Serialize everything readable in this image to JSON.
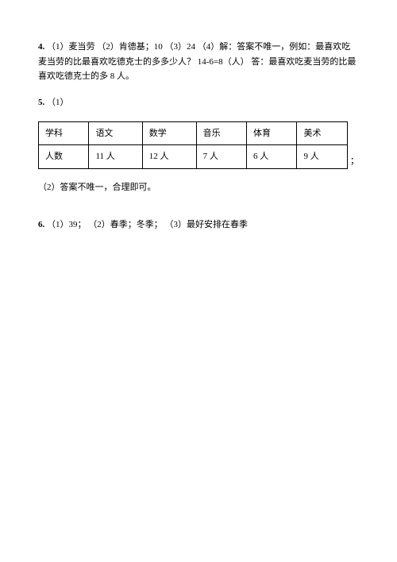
{
  "q4": {
    "number": "4.",
    "text": "（1）麦当劳 （2）肯德基；10 （3）24 （4）解：答案不唯一，例如：最喜欢吃麦当劳的比最喜欢吃德克士的多多少人？ 14-6=8（人）  答：最喜欢吃麦当劳的比最喜欢吃德克士的多 8 人。"
  },
  "q5": {
    "number": "5.",
    "part1_label": "（1）",
    "table": {
      "columns": [
        "学科",
        "语文",
        "数学",
        "音乐",
        "体育",
        "美术"
      ],
      "rows": [
        [
          "人数",
          "11 人",
          "12 人",
          "7 人",
          "6 人",
          "9 人"
        ]
      ],
      "trailing": "；"
    },
    "part2": "（2）答案不唯一，合理即可。"
  },
  "q6": {
    "number": "6.",
    "text": "（1）39； （2）春季；冬季； （3）最好安排在春季"
  }
}
